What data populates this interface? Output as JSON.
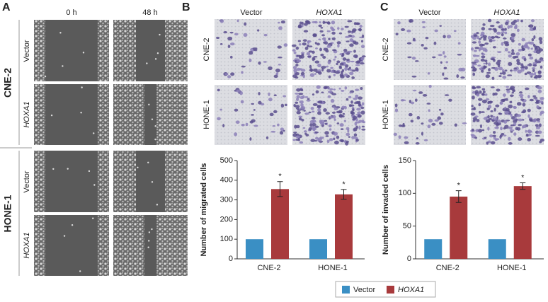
{
  "figure": {
    "panel_a": {
      "label": "A",
      "columns": [
        "0 h",
        "48 h"
      ],
      "groups": [
        {
          "name": "CNE-2",
          "rows": [
            "Vector",
            "HOXA1"
          ]
        },
        {
          "name": "HONE-1",
          "rows": [
            "Vector",
            "HOXA1"
          ]
        }
      ]
    },
    "panel_b": {
      "label": "B",
      "columns": [
        "Vector",
        "HOXA1"
      ],
      "rows": [
        "CNE-2",
        "HONE-1"
      ]
    },
    "panel_c": {
      "label": "C",
      "columns": [
        "Vector",
        "HOXA1"
      ],
      "rows": [
        "CNE-2",
        "HONE-1"
      ]
    }
  },
  "chart_data": [
    {
      "type": "bar",
      "y_label": "Number of migrated cells",
      "categories": [
        "CNE-2",
        "HONE-1"
      ],
      "series": [
        {
          "name": "Vector",
          "color": "#3a8fc4",
          "values": [
            100,
            100
          ]
        },
        {
          "name": "HOXA1",
          "color": "#a83a3c",
          "values": [
            355,
            328
          ],
          "errors": [
            38,
            25
          ],
          "annotations": [
            "*",
            "*"
          ]
        }
      ],
      "ylim": [
        0,
        500
      ],
      "yticks": [
        0,
        100,
        200,
        300,
        400,
        500
      ]
    },
    {
      "type": "bar",
      "y_label": "Number of invaded cells",
      "categories": [
        "CNE-2",
        "HONE-1"
      ],
      "series": [
        {
          "color": "#3a8fc4",
          "values": [
            30,
            30
          ]
        },
        {
          "color": "#a83a3c",
          "values": [
            95,
            111
          ],
          "errors": [
            9,
            5
          ],
          "annotations": [
            "*",
            "*"
          ]
        }
      ],
      "ylim": [
        0,
        150
      ],
      "yticks": [
        0,
        50,
        100,
        150
      ]
    }
  ]
}
